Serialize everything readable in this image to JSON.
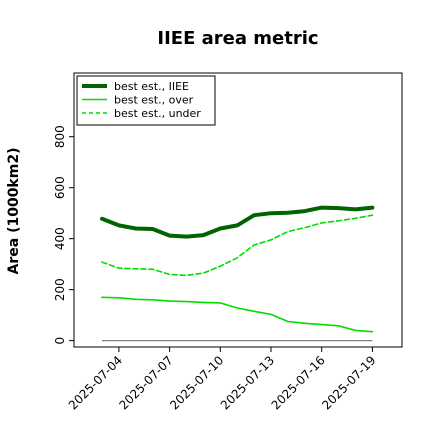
{
  "chart_data": {
    "type": "line",
    "title": "IIEE area metric",
    "xlabel": "",
    "ylabel": "Area (1000km2)",
    "x": [
      "2025-07-03",
      "2025-07-04",
      "2025-07-05",
      "2025-07-06",
      "2025-07-07",
      "2025-07-08",
      "2025-07-09",
      "2025-07-10",
      "2025-07-11",
      "2025-07-12",
      "2025-07-13",
      "2025-07-14",
      "2025-07-15",
      "2025-07-16",
      "2025-07-17",
      "2025-07-18",
      "2025-07-19"
    ],
    "xticks": [
      "2025-07-04",
      "2025-07-07",
      "2025-07-10",
      "2025-07-13",
      "2025-07-16",
      "2025-07-19"
    ],
    "yticks": [
      0,
      200,
      400,
      600,
      800
    ],
    "ylim": [
      -25,
      1050
    ],
    "grid": false,
    "legend_position": "top-left",
    "series": [
      {
        "name": "best est., IIEE",
        "color": "#006400",
        "style": "solid",
        "width": "thick",
        "values": [
          478,
          452,
          440,
          438,
          412,
          408,
          414,
          440,
          452,
          492,
          500,
          502,
          508,
          522,
          520,
          515,
          522
        ]
      },
      {
        "name": "best est., over",
        "color": "#00dd00",
        "style": "solid",
        "width": "thin",
        "values": [
          170,
          168,
          162,
          160,
          155,
          153,
          150,
          148,
          128,
          115,
          103,
          75,
          68,
          63,
          58,
          40,
          35
        ]
      },
      {
        "name": "best est., under",
        "color": "#00dd00",
        "style": "dashed",
        "width": "thin",
        "values": [
          308,
          284,
          282,
          280,
          260,
          256,
          265,
          292,
          325,
          375,
          395,
          428,
          443,
          462,
          470,
          480,
          492
        ]
      }
    ],
    "baseline": {
      "value": 0,
      "color": "#808080"
    }
  }
}
